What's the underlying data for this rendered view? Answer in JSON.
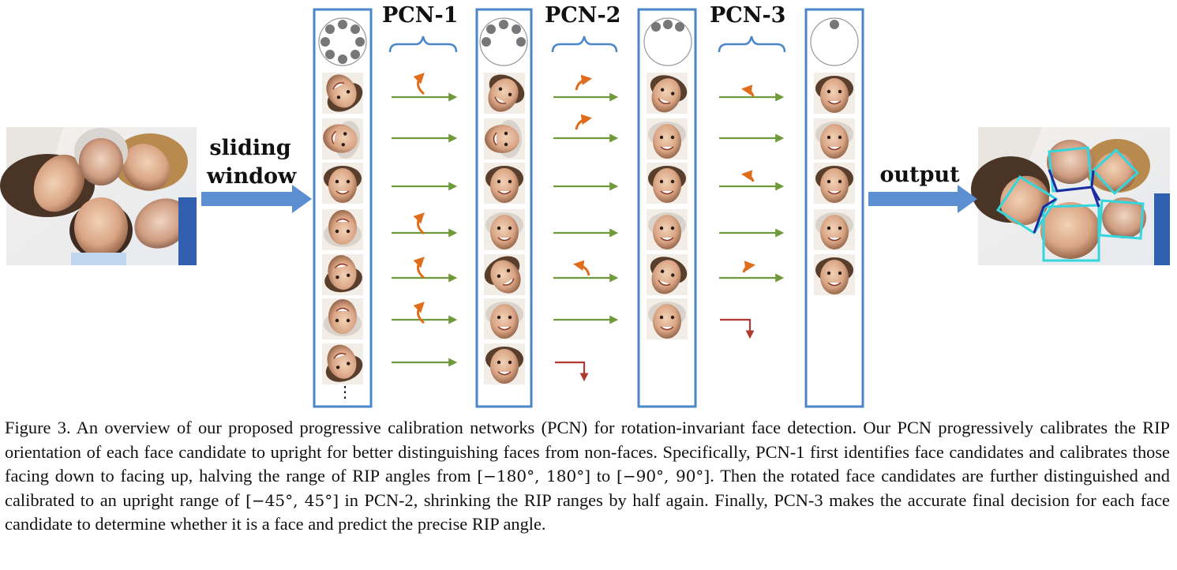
{
  "figure": {
    "stages": [
      "PCN-1",
      "PCN-2",
      "PCN-3"
    ],
    "input_arrow_label": [
      "sliding",
      "window"
    ],
    "output_arrow_label": "output",
    "ellipsis": "⋮",
    "candidate_counts": [
      7,
      7,
      6,
      5
    ],
    "colors": {
      "column_border": "#4a86c8",
      "flow_arrow": "#6f9a3a",
      "rotation_arrow": "#e06d1c",
      "reject_arrow": "#b03a32",
      "big_arrow": "#5b8fd1",
      "box_light": "#33d6dc",
      "box_dark": "#1d2aa0"
    }
  },
  "caption": {
    "prefix": "Figure 3. An overview of our proposed progressive calibration networks (PCN) for rotation-invariant face detection. Our PCN progressively calibrates the RIP orientation of each face candidate to upright for better distinguishing faces from non-faces. Specifically, PCN-1 first identifies face candidates and calibrates those facing down to facing up, halving the range of RIP angles from ",
    "range1": "[−180°, 180°]",
    "mid1": " to ",
    "range2": "[−90°, 90°]",
    "mid2": ". Then the rotated face candidates are further distinguished and calibrated to an upright range of ",
    "range3": "[−45°, 45°]",
    "suffix": " in PCN-2, shrinking the RIP ranges by half again. Finally, PCN-3 makes the accurate final decision for each face candidate to determine whether it is a face and predict the precise RIP angle."
  }
}
